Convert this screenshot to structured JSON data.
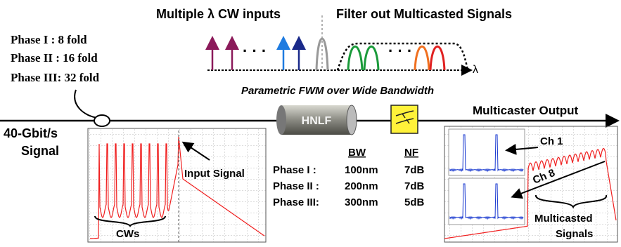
{
  "phases": [
    "Phase I  :  8 fold",
    "Phase II : 16 fold",
    "Phase III: 32 fold"
  ],
  "top": {
    "cw_inputs": "Multiple λ CW inputs",
    "filter": "Filter out Multicasted Signals",
    "lambda": "λ"
  },
  "fwm": "Parametric FWM over Wide Bandwidth",
  "hnlf": "HNLF",
  "output": "Multicaster Output",
  "signal": [
    "40-Gbit/s",
    "Signal"
  ],
  "left_spectrum": {
    "input": "Input Signal",
    "cws": "CWs"
  },
  "table": {
    "headers": [
      "BW",
      "NF"
    ],
    "rows": [
      [
        "Phase I :",
        "100nm",
        "7dB"
      ],
      [
        "Phase II :",
        "200nm",
        "7dB"
      ],
      [
        "Phase III:",
        "300nm",
        "5dB"
      ]
    ]
  },
  "right_spectrum": {
    "ch1": "Ch 1",
    "ch8": "Ch 8",
    "multicasted": [
      "Multicasted",
      "Signals"
    ]
  }
}
